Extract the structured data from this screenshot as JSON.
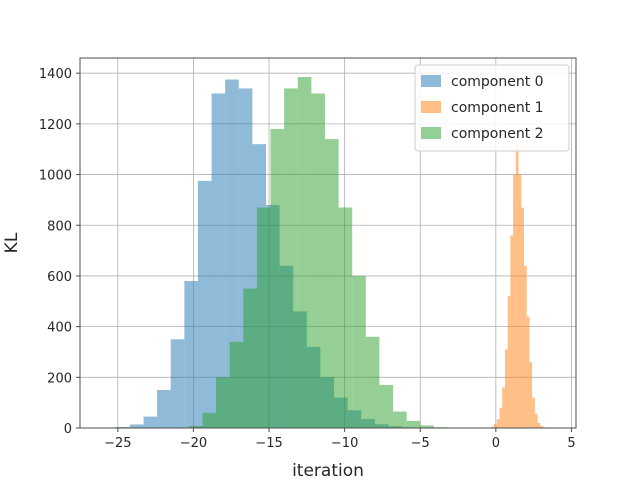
{
  "chart_data": {
    "type": "bar",
    "histogram": true,
    "xlabel": "iteration",
    "ylabel": "KL",
    "xlim": [
      -27.5,
      5.3
    ],
    "ylim": [
      0,
      1460
    ],
    "xticks": [
      -25,
      -20,
      -15,
      -10,
      -5,
      0,
      5
    ],
    "xtick_labels": [
      "−25",
      "−20",
      "−15",
      "−10",
      "−5",
      "0",
      "5"
    ],
    "yticks": [
      0,
      200,
      400,
      600,
      800,
      1000,
      1200,
      1400
    ],
    "ytick_labels": [
      "0",
      "200",
      "400",
      "600",
      "800",
      "1000",
      "1200",
      "1400"
    ],
    "grid": true,
    "legend_position": "top-right",
    "series": [
      {
        "name": "component 0",
        "color": "#1f77b4",
        "alpha": 0.5,
        "bin_start": -25.1,
        "bin_width": 0.9,
        "counts": [
          4,
          14,
          45,
          150,
          350,
          580,
          975,
          1320,
          1375,
          1340,
          1120,
          880,
          640,
          460,
          320,
          200,
          120,
          70,
          35,
          15,
          7,
          3
        ]
      },
      {
        "name": "component 1",
        "color": "#ff7f0e",
        "alpha": 0.5,
        "bin_start": -0.3,
        "bin_width": 0.18,
        "counts": [
          5,
          15,
          35,
          80,
          160,
          310,
          520,
          760,
          1000,
          1120,
          1000,
          870,
          640,
          440,
          260,
          120,
          55,
          20,
          8,
          3
        ]
      },
      {
        "name": "component 2",
        "color": "#2ca02c",
        "alpha": 0.5,
        "bin_start": -20.3,
        "bin_width": 0.9,
        "counts": [
          8,
          60,
          200,
          340,
          550,
          870,
          1180,
          1340,
          1385,
          1320,
          1140,
          870,
          600,
          360,
          170,
          65,
          28,
          10,
          3
        ]
      }
    ]
  }
}
